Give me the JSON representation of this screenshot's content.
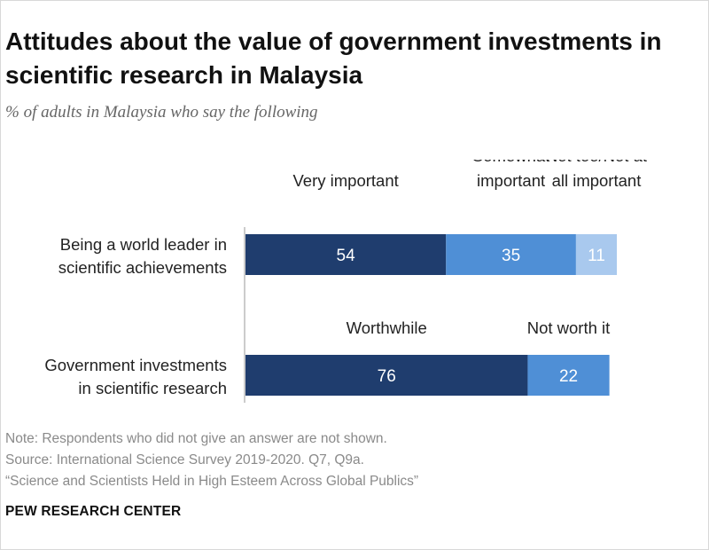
{
  "title": "Attitudes about the value of government investments in scientific research in Malaysia",
  "subtitle": "% of adults in Malaysia who say the following",
  "notes": {
    "note": "Note: Respondents who did not give an answer are not shown.",
    "source": "Source: International Science Survey 2019-2020. Q7, Q9a.",
    "report": "“Science and Scientists Held in High Esteem Across Global Publics”"
  },
  "brand": "PEW RESEARCH CENTER",
  "chart_data": [
    {
      "type": "bar",
      "orientation": "horizontal",
      "stacked": true,
      "categories": [
        "Being a world leader in scientific achievements"
      ],
      "category_lines": [
        [
          "Being a world leader in",
          "scientific achievements"
        ]
      ],
      "series": [
        {
          "name": "Very important",
          "name_lines": [
            "Very important"
          ],
          "values": [
            54
          ],
          "color": "#1f3d6e"
        },
        {
          "name": "Somewhat important",
          "name_lines": [
            "Somewhat",
            "important"
          ],
          "values": [
            35
          ],
          "color": "#4f8fd6"
        },
        {
          "name": "Not too/Not at all important",
          "name_lines": [
            "Not too/Not at",
            "all important"
          ],
          "values": [
            11
          ],
          "color": "#a9c9ee"
        }
      ],
      "xlim": [
        0,
        100
      ]
    },
    {
      "type": "bar",
      "orientation": "horizontal",
      "stacked": true,
      "categories": [
        "Government investments in scientific research"
      ],
      "category_lines": [
        [
          "Government investments",
          "in scientific research"
        ]
      ],
      "series": [
        {
          "name": "Worthwhile",
          "name_lines": [
            "Worthwhile"
          ],
          "values": [
            76
          ],
          "color": "#1f3d6e"
        },
        {
          "name": "Not worth it",
          "name_lines": [
            "Not worth it"
          ],
          "values": [
            22
          ],
          "color": "#4f8fd6"
        }
      ],
      "xlim": [
        0,
        100
      ]
    }
  ]
}
